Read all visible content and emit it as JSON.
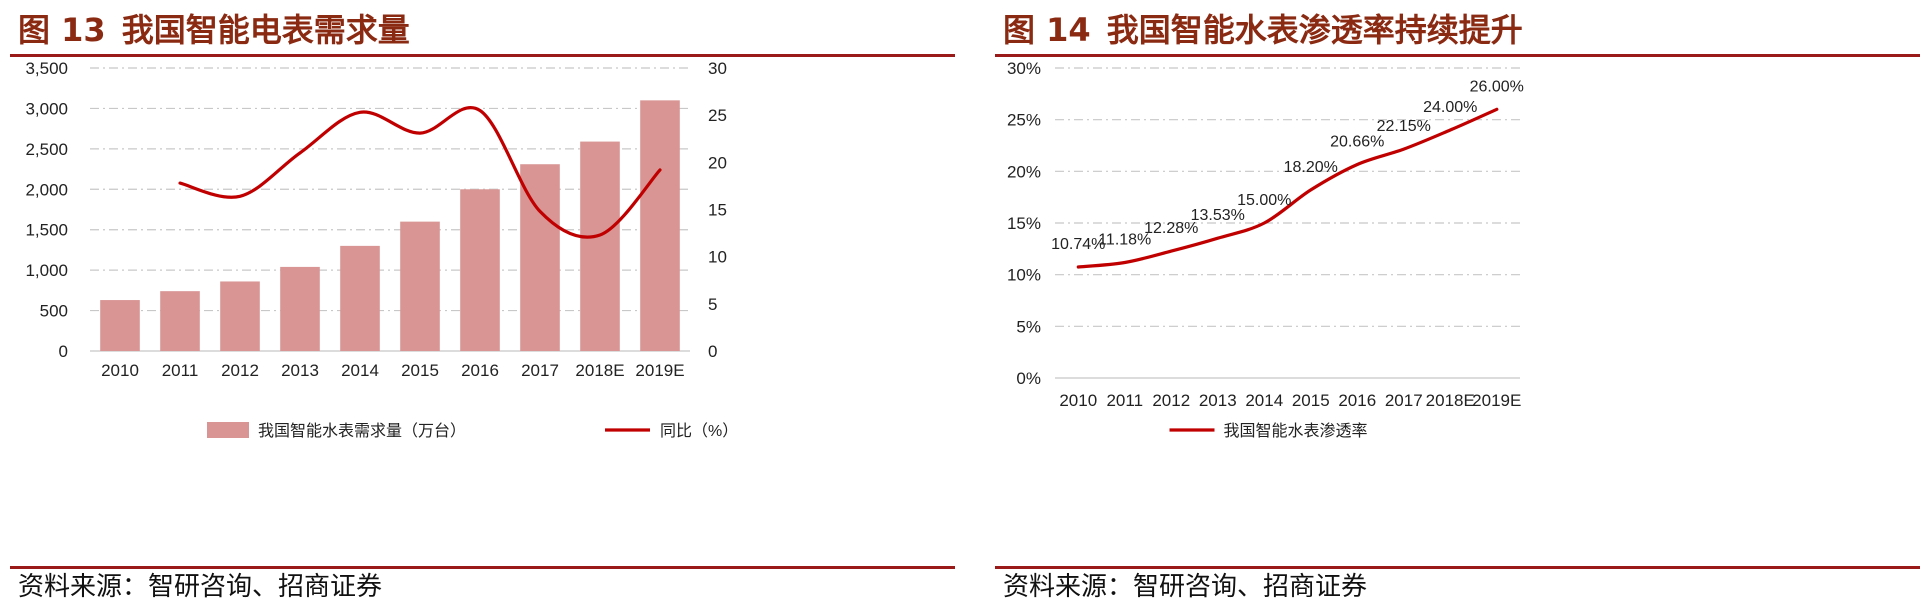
{
  "figures": [
    {
      "number": "图 13",
      "title": "我国智能电表需求量",
      "source": "资料来源：智研咨询、招商证券"
    },
    {
      "number": "图 14",
      "title": "我国智能水表渗透率持续提升",
      "source": "资料来源：智研咨询、招商证券"
    }
  ],
  "chart_data": [
    {
      "type": "bar",
      "title": "我国智能电表需求量",
      "categories": [
        "2010",
        "2011",
        "2012",
        "2013",
        "2014",
        "2015",
        "2016",
        "2017",
        "2018E",
        "2019E"
      ],
      "ylim": [
        0,
        3500
      ],
      "yticks": [
        "0",
        "500",
        "1,000",
        "1,500",
        "2,000",
        "2,500",
        "3,000",
        "3,500"
      ],
      "y2lim": [
        0,
        30
      ],
      "y2ticks": [
        "0",
        "5",
        "10",
        "15",
        "20",
        "25",
        "30"
      ],
      "series": [
        {
          "name": "我国智能水表需求量（万台）",
          "kind": "bar",
          "axis": "left",
          "color": "#d89594",
          "values": [
            630,
            740,
            860,
            1040,
            1300,
            1600,
            2000,
            2310,
            2590,
            3100
          ]
        },
        {
          "name": "同比（%）",
          "kind": "line",
          "axis": "right",
          "color": "#c00000",
          "values": [
            null,
            17.8,
            16.4,
            21.0,
            25.3,
            23.1,
            25.5,
            14.8,
            12.3,
            19.2
          ]
        }
      ],
      "grid": true,
      "legend": "bottom"
    },
    {
      "type": "line",
      "title": "我国智能水表渗透率持续提升",
      "categories": [
        "2010",
        "2011",
        "2012",
        "2013",
        "2014",
        "2015",
        "2016",
        "2017",
        "2018E",
        "2019E"
      ],
      "ylim": [
        0,
        30
      ],
      "yticks": [
        "0%",
        "5%",
        "10%",
        "15%",
        "20%",
        "25%",
        "30%"
      ],
      "series": [
        {
          "name": "我国智能水表渗透率",
          "color": "#c00000",
          "values": [
            10.74,
            11.18,
            12.28,
            13.53,
            15.0,
            18.2,
            20.66,
            22.15,
            24.0,
            26.0
          ],
          "labels": [
            "10.74%",
            "11.18%",
            "12.28%",
            "13.53%",
            "15.00%",
            "18.20%",
            "20.66%",
            "22.15%",
            "24.00%",
            "26.00%"
          ]
        }
      ],
      "grid": true,
      "legend": "bottom"
    }
  ]
}
